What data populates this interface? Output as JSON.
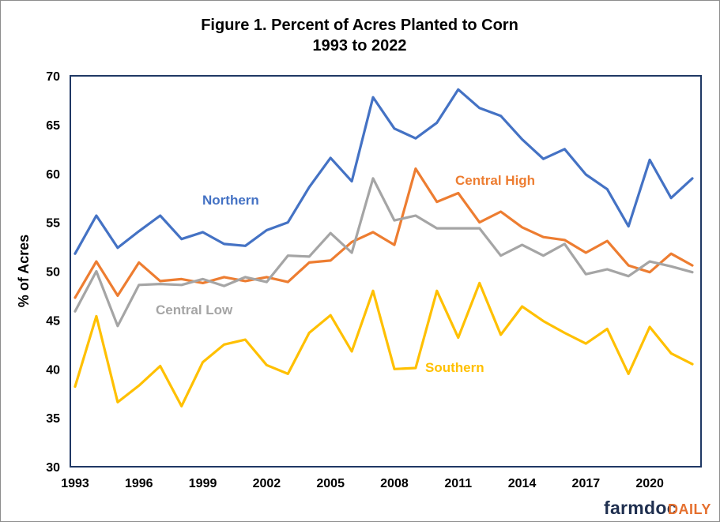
{
  "chart_data": {
    "type": "line",
    "title": "Figure 1. Percent of Acres Planted to Corn",
    "subtitle": "1993 to 2022",
    "xlabel": "",
    "ylabel": "% of Acres",
    "xlim": [
      1993,
      2022
    ],
    "ylim": [
      30,
      70
    ],
    "x_ticks": [
      1993,
      1996,
      1999,
      2002,
      2005,
      2008,
      2011,
      2014,
      2017,
      2020
    ],
    "y_ticks": [
      30,
      35,
      40,
      45,
      50,
      55,
      60,
      65,
      70
    ],
    "grid": false,
    "legend": "none (series labeled directly on plot)",
    "x": [
      1993,
      1994,
      1995,
      1996,
      1997,
      1998,
      1999,
      2000,
      2001,
      2002,
      2003,
      2004,
      2005,
      2006,
      2007,
      2008,
      2009,
      2010,
      2011,
      2012,
      2013,
      2014,
      2015,
      2016,
      2017,
      2018,
      2019,
      2020,
      2021,
      2022
    ],
    "series": [
      {
        "name": "Northern",
        "color": "#4472c4",
        "values": [
          51.8,
          55.7,
          52.4,
          54.1,
          55.7,
          53.3,
          54.0,
          52.8,
          52.6,
          54.2,
          55.0,
          58.6,
          61.6,
          59.2,
          67.8,
          64.6,
          63.6,
          65.2,
          68.6,
          66.7,
          65.9,
          63.5,
          61.5,
          62.5,
          59.9,
          58.4,
          54.6,
          61.4,
          57.5,
          59.5
        ]
      },
      {
        "name": "Central High",
        "color": "#ed7d31",
        "values": [
          47.3,
          51.0,
          47.5,
          50.9,
          49.0,
          49.2,
          48.8,
          49.4,
          49.0,
          49.4,
          48.9,
          50.9,
          51.1,
          53.0,
          54.0,
          52.7,
          60.5,
          57.1,
          58.0,
          55.0,
          56.1,
          54.5,
          53.5,
          53.2,
          51.9,
          53.1,
          50.6,
          49.9,
          51.8,
          50.6
        ]
      },
      {
        "name": "Central Low",
        "color": "#a5a5a5",
        "values": [
          45.9,
          50.0,
          44.4,
          48.6,
          48.7,
          48.6,
          49.2,
          48.5,
          49.4,
          48.9,
          51.6,
          51.5,
          53.9,
          51.9,
          59.5,
          55.2,
          55.7,
          54.4,
          54.4,
          54.4,
          51.6,
          52.7,
          51.6,
          52.8,
          49.7,
          50.2,
          49.5,
          51.0,
          50.5,
          49.9
        ]
      },
      {
        "name": "Southern",
        "color": "#ffc000",
        "values": [
          38.2,
          45.4,
          36.6,
          38.3,
          40.3,
          36.2,
          40.7,
          42.5,
          43.0,
          40.4,
          39.5,
          43.7,
          45.5,
          41.8,
          48.0,
          40.0,
          40.1,
          48.0,
          43.2,
          48.8,
          43.5,
          46.4,
          44.9,
          43.7,
          42.6,
          44.1,
          39.5,
          44.3,
          41.6,
          40.5
        ]
      }
    ]
  },
  "branding": {
    "farmdoc": "farmdoc",
    "daily": "DAILY"
  }
}
